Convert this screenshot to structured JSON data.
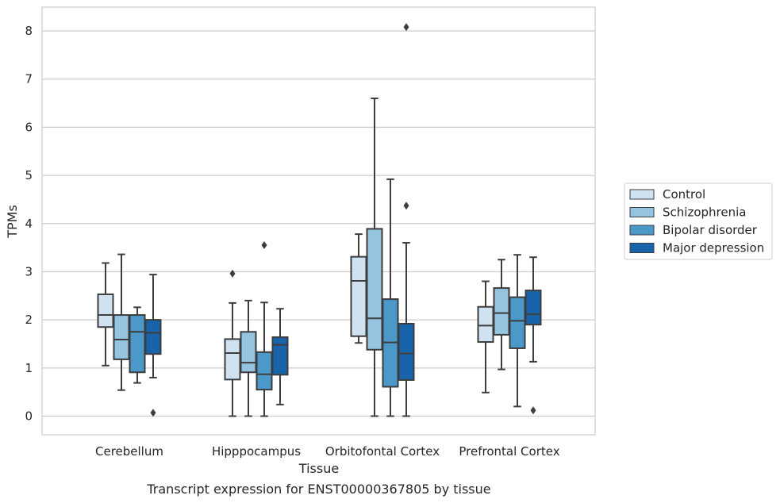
{
  "chart_data": {
    "type": "box",
    "caption": "Transcript expression for ENST00000367805 by tissue",
    "xlabel": "Tissue",
    "ylabel": "TPMs",
    "ylim": [
      -0.38,
      8.5
    ],
    "yticks": [
      0,
      1,
      2,
      3,
      4,
      5,
      6,
      7,
      8
    ],
    "grid": "horizontal",
    "legend_position": "right",
    "categories": [
      "Cerebellum",
      "Hipppocampus",
      "Orbitofontal Cortex",
      "Prefrontal Cortex"
    ],
    "series": [
      {
        "name": "Control",
        "color": "#d0e1f2",
        "boxes": [
          {
            "q1": 1.85,
            "median": 2.1,
            "q3": 2.53,
            "whisker_low": 1.05,
            "whisker_high": 3.18,
            "outliers": []
          },
          {
            "q1": 0.76,
            "median": 1.31,
            "q3": 1.6,
            "whisker_low": 0.0,
            "whisker_high": 2.35,
            "outliers": [
              2.96
            ]
          },
          {
            "q1": 1.66,
            "median": 2.81,
            "q3": 3.31,
            "whisker_low": 1.52,
            "whisker_high": 3.78,
            "outliers": []
          },
          {
            "q1": 1.54,
            "median": 1.88,
            "q3": 2.27,
            "whisker_low": 0.49,
            "whisker_high": 2.8,
            "outliers": []
          }
        ]
      },
      {
        "name": "Schizophrenia",
        "color": "#94c4df",
        "boxes": [
          {
            "q1": 1.18,
            "median": 1.59,
            "q3": 2.1,
            "whisker_low": 0.54,
            "whisker_high": 3.36,
            "outliers": []
          },
          {
            "q1": 0.91,
            "median": 1.11,
            "q3": 1.75,
            "whisker_low": 0.0,
            "whisker_high": 2.4,
            "outliers": []
          },
          {
            "q1": 1.38,
            "median": 2.03,
            "q3": 3.89,
            "whisker_low": 0.0,
            "whisker_high": 6.6,
            "outliers": []
          },
          {
            "q1": 1.69,
            "median": 2.14,
            "q3": 2.66,
            "whisker_low": 0.97,
            "whisker_high": 3.25,
            "outliers": []
          }
        ]
      },
      {
        "name": "Bipolar disorder",
        "color": "#4b98c9",
        "boxes": [
          {
            "q1": 0.91,
            "median": 1.75,
            "q3": 2.1,
            "whisker_low": 0.69,
            "whisker_high": 2.26,
            "outliers": []
          },
          {
            "q1": 0.55,
            "median": 0.87,
            "q3": 1.33,
            "whisker_low": 0.0,
            "whisker_high": 2.36,
            "outliers": [
              3.55
            ]
          },
          {
            "q1": 0.61,
            "median": 1.53,
            "q3": 2.43,
            "whisker_low": 0.0,
            "whisker_high": 4.92,
            "outliers": []
          },
          {
            "q1": 1.41,
            "median": 1.98,
            "q3": 2.47,
            "whisker_low": 0.2,
            "whisker_high": 3.35,
            "outliers": []
          }
        ]
      },
      {
        "name": "Major depression",
        "color": "#1864aa",
        "boxes": [
          {
            "q1": 1.29,
            "median": 1.73,
            "q3": 2.0,
            "whisker_low": 0.8,
            "whisker_high": 2.94,
            "outliers": [
              0.07
            ]
          },
          {
            "q1": 0.86,
            "median": 1.48,
            "q3": 1.64,
            "whisker_low": 0.24,
            "whisker_high": 2.23,
            "outliers": []
          },
          {
            "q1": 0.75,
            "median": 1.3,
            "q3": 1.92,
            "whisker_low": 0.0,
            "whisker_high": 3.6,
            "outliers": [
              4.37,
              8.08
            ]
          },
          {
            "q1": 1.9,
            "median": 2.12,
            "q3": 2.61,
            "whisker_low": 1.13,
            "whisker_high": 3.3,
            "outliers": [
              0.12
            ]
          }
        ]
      }
    ]
  }
}
